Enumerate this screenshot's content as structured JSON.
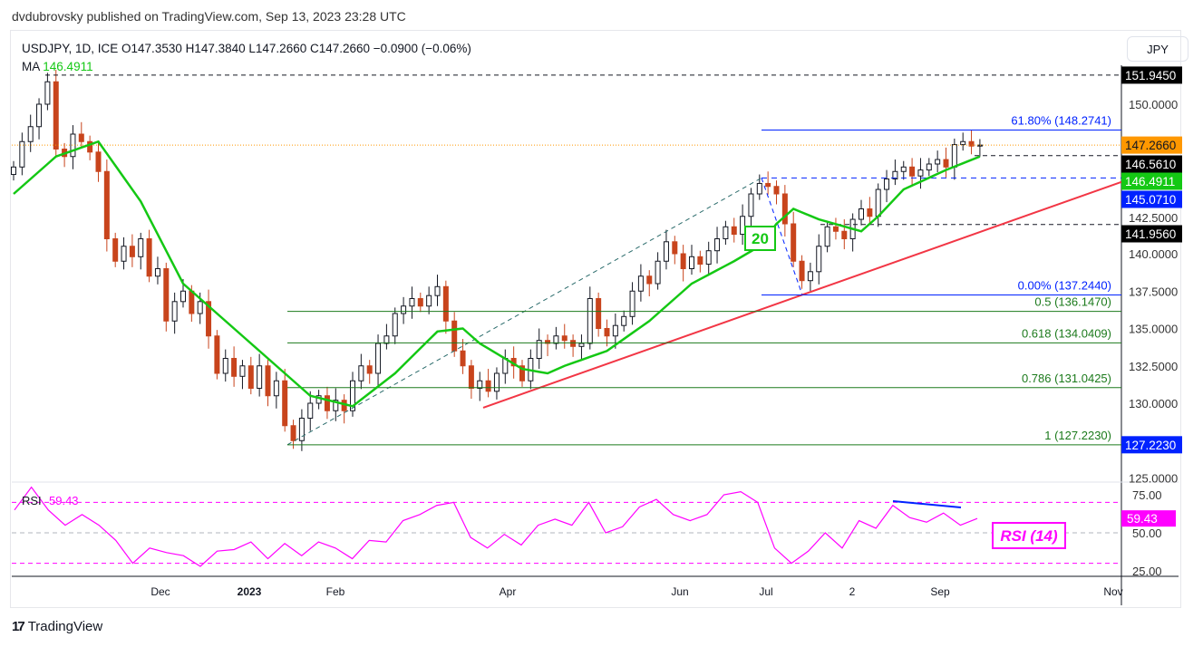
{
  "header": {
    "published": "dvdubrovsky published on TradingView.com, Sep 13, 2023 23:28 UTC"
  },
  "legend": {
    "symbol_line": "USDJPY, 1D, ICE  O147.3530  H147.3840  L147.2660  C147.2660  −0.0900 (−0.06%)",
    "ma_label": "MA",
    "ma_value": "146.4911"
  },
  "currency_button": "JPY",
  "ma_tag": "20",
  "rsi": {
    "label": "RSI",
    "value": "59.43",
    "box_label": "RSI (14)",
    "ticks": [
      "75.00",
      "50.00",
      "25.00"
    ],
    "badge": "59.43"
  },
  "footer": {
    "brand": "TradingView"
  },
  "colors": {
    "up": "#131722",
    "down": "#c8441c",
    "ma": "#14c814",
    "rsi": "#ff00ff",
    "trend": "#f23645",
    "fib": "#1c7a1c",
    "blue": "#0022ff",
    "current": "#ff9800"
  },
  "chart_data": {
    "type": "candlestick",
    "symbol": "USDJPY",
    "interval": "1D",
    "y_axis": {
      "range": [
        124,
        153
      ],
      "ticks": [
        "150.0000",
        "142.5000",
        "140.0000",
        "137.5000",
        "135.0000",
        "132.5000",
        "130.0000",
        "125.0000"
      ]
    },
    "x_axis": {
      "ticks": [
        "Dec",
        "2023",
        "Feb",
        "Apr",
        "Jun",
        "Jul",
        "2",
        "Sep",
        "Nov"
      ]
    },
    "closes": [
      145.8,
      147.5,
      148.5,
      150.0,
      151.5,
      147.0,
      146.5,
      148.0,
      147.5,
      146.8,
      145.5,
      141.0,
      139.5,
      140.5,
      139.8,
      141.0,
      138.5,
      139.0,
      135.5,
      136.8,
      137.5,
      136.0,
      136.8,
      134.5,
      132.0,
      133.0,
      131.8,
      132.5,
      131.0,
      132.5,
      130.5,
      131.5,
      128.5,
      127.5,
      129.0,
      130.0,
      130.5,
      129.5,
      130.2,
      129.5,
      131.5,
      132.5,
      132.0,
      134.0,
      134.5,
      136.0,
      136.5,
      137.0,
      136.5,
      137.2,
      137.8,
      135.5,
      133.5,
      132.5,
      131.0,
      131.5,
      130.8,
      132.0,
      133.0,
      132.5,
      131.5,
      133.0,
      134.2,
      134.0,
      134.5,
      134.2,
      133.8,
      134.0,
      137.0,
      135.0,
      134.5,
      135.2,
      135.8,
      137.5,
      138.5,
      138.0,
      139.5,
      140.8,
      140.0,
      139.0,
      139.8,
      139.3,
      140.2,
      141.0,
      141.8,
      141.3,
      142.5,
      144.0,
      144.7,
      144.5,
      144.0,
      142.0,
      139.5,
      138.2,
      138.8,
      140.5,
      141.8,
      141.5,
      141.0,
      142.3,
      143.0,
      142.5,
      144.3,
      145.0,
      145.5,
      145.8,
      145.2,
      145.6,
      146.0,
      146.3,
      145.8,
      147.3,
      147.5,
      147.2,
      147.266
    ],
    "ma_20": [
      [
        0,
        144.0
      ],
      [
        5,
        146.5
      ],
      [
        10,
        147.5
      ],
      [
        15,
        143.5
      ],
      [
        20,
        138.0
      ],
      [
        25,
        135.5
      ],
      [
        30,
        133.0
      ],
      [
        35,
        130.5
      ],
      [
        40,
        129.8
      ],
      [
        45,
        132.0
      ],
      [
        50,
        134.8
      ],
      [
        53,
        135.0
      ],
      [
        55,
        134.0
      ],
      [
        60,
        132.3
      ],
      [
        63,
        132.0
      ],
      [
        65,
        132.5
      ],
      [
        70,
        133.5
      ],
      [
        75,
        135.5
      ],
      [
        80,
        138.0
      ],
      [
        85,
        139.5
      ],
      [
        88,
        140.5
      ],
      [
        90,
        142.0
      ],
      [
        92,
        143.0
      ],
      [
        95,
        142.3
      ],
      [
        100,
        141.5
      ],
      [
        102,
        142.5
      ],
      [
        105,
        144.3
      ],
      [
        110,
        145.6
      ],
      [
        114,
        146.5
      ]
    ],
    "rsi_14": [
      65,
      80,
      65,
      55,
      62,
      55,
      45,
      30,
      40,
      37,
      35,
      28,
      38,
      39,
      44,
      33,
      43,
      35,
      44,
      40,
      33,
      45,
      44,
      58,
      62,
      68,
      70,
      47,
      40,
      49,
      42,
      55,
      59,
      55,
      70,
      50,
      54,
      67,
      72,
      62,
      58,
      62,
      75,
      77,
      70,
      40,
      30,
      38,
      50,
      40,
      58,
      53,
      68,
      60,
      57,
      63,
      55,
      59.43
    ],
    "rsi_levels": [
      70,
      50,
      30
    ],
    "levels": [
      {
        "price": 151.945,
        "badge": "151.9450",
        "style": "dashed-black"
      },
      {
        "price": 148.2741,
        "label": "61.80% (148.2741)",
        "style": "fib-blue"
      },
      {
        "price": 147.266,
        "badge": "147.2660",
        "style": "current-dotted"
      },
      {
        "price": 146.561,
        "badge": "146.5610",
        "style": "dashed-black"
      },
      {
        "price": 146.4911,
        "badge": "146.4911",
        "style": "ma"
      },
      {
        "price": 145.071,
        "badge": "145.0710",
        "style": "dashed-blue"
      },
      {
        "price": 141.956,
        "badge": "141.9560",
        "style": "dashed-black"
      },
      {
        "price": 137.244,
        "label": "0.00% (137.2440)",
        "style": "fib-blue"
      },
      {
        "price": 136.147,
        "label": "0.5 (136.1470)",
        "style": "fib-green"
      },
      {
        "price": 134.0409,
        "label": "0.618 (134.0409)",
        "style": "fib-green"
      },
      {
        "price": 131.0425,
        "label": "0.786 (131.0425)",
        "style": "fib-green"
      },
      {
        "price": 127.223,
        "label": "1 (127.2230)",
        "badge": "127.2230",
        "style": "fib-green"
      }
    ]
  }
}
